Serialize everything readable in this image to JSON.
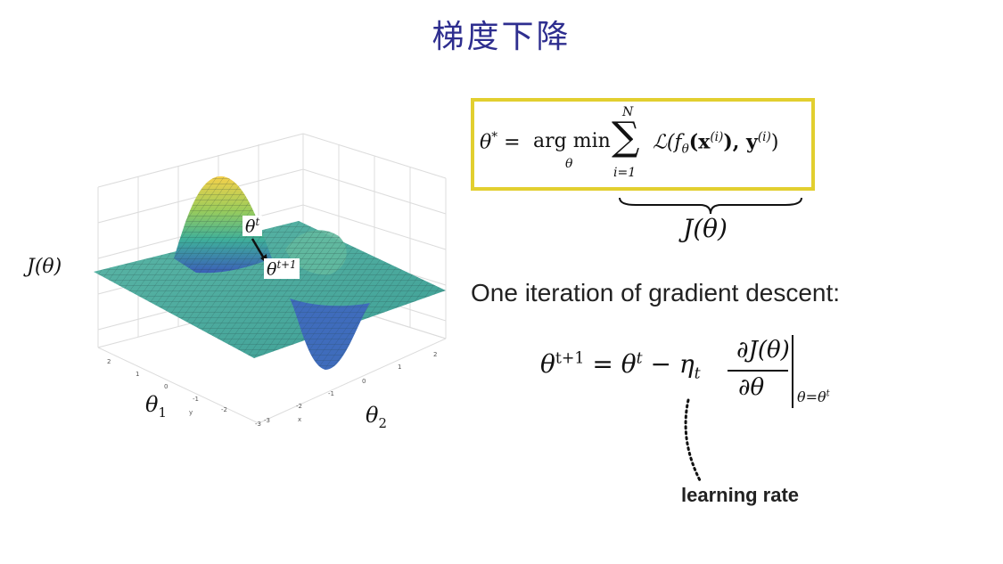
{
  "slide": {
    "title": "梯度下降"
  },
  "objective": {
    "lhs": "θ",
    "lhs_sup": "*",
    "eq": "=",
    "argmin": "arg min",
    "argmin_sub": "θ",
    "sum_top": "N",
    "sum_sym": "∑",
    "sum_bottom": "i=1",
    "loss": "ℒ(f",
    "loss_sub": "θ",
    "loss_x": "(x",
    "loss_x_sup": "(i)",
    "loss_y": "), y",
    "loss_y_sup": "(i)",
    "loss_close": ")",
    "brace_label": "J(θ)",
    "box_color": "#e2cf2f"
  },
  "plot": {
    "z_label": "J(θ)",
    "x_label_main": "θ",
    "x_label_sub": "1",
    "y_label_main": "θ",
    "y_label_sub": "2",
    "small_axis_x": "x",
    "small_axis_y": "y",
    "point_t": "θ",
    "point_t_sup": "t",
    "point_t1": "θ",
    "point_t1_sup": "t+1",
    "left_ticks": [
      "2",
      "1",
      "0",
      "-1",
      "-2",
      "-3"
    ],
    "right_ticks": [
      "-3",
      "-2",
      "-1",
      "0",
      "1",
      "2"
    ]
  },
  "update": {
    "heading": "One iteration of gradient descent:",
    "lhs": "θ",
    "lhs_sup": "t+1",
    "eq": "=",
    "theta_t": "θ",
    "theta_t_sup": "t",
    "minus": "−",
    "eta": "η",
    "eta_sub": "t",
    "numerator": "∂J(θ)",
    "denominator": "∂θ",
    "eval_sub": "θ=θ",
    "eval_sub_sup": "t",
    "lr_label": "learning rate"
  }
}
